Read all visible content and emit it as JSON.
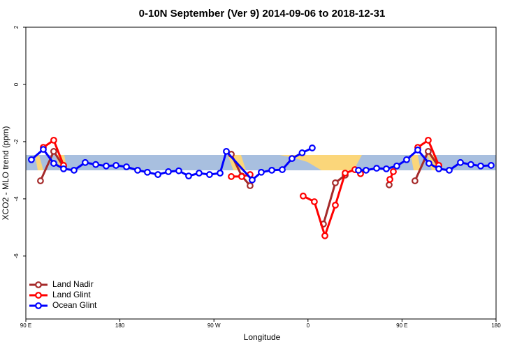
{
  "chart_data": {
    "type": "line",
    "title": "0-10N September (Ver 9)   2014-09-06 to 2018-12-31",
    "x_label": "Longitude",
    "y_label": "XCO2 - MLO trend (ppm)",
    "xlim": [
      90,
      540
    ],
    "ylim": [
      -8.2,
      2
    ],
    "xticks": [
      {
        "value": 90,
        "label": "90 E"
      },
      180,
      {
        "value": 270,
        "label": "90 W"
      },
      {
        "value": 360,
        "label": "0"
      },
      {
        "value": 450,
        "label": "90 E"
      },
      {
        "value": 540,
        "label": "180"
      }
    ],
    "yticks": [
      2,
      0,
      -2,
      -4,
      -6
    ],
    "legend": "bottom-left",
    "series": [
      {
        "name": "Land Nadir",
        "color": "#a52a2a",
        "x": [
          104,
          116.7,
          126.1,
          null,
          286.6,
          296.6,
          304.6,
          null,
          374.8,
          386.2,
          395.6,
          null,
          437.7,
          null,
          462.4,
          475.1,
          485.2
        ],
        "values": [
          -3.37,
          -2.34,
          -2.88,
          null,
          -2.44,
          -3.2,
          -3.54,
          null,
          -4.88,
          -3.44,
          -3.17,
          null,
          -3.51,
          null,
          -3.37,
          -2.34,
          -2.88
        ]
      },
      {
        "name": "Land Glint",
        "color": "#ff0000",
        "x": [
          106.7,
          116.7,
          126.1,
          null,
          286.6,
          296.6,
          304.6,
          null,
          355.4,
          366.1,
          376.2,
          386.2,
          395.6,
          404.9,
          410.3,
          null,
          438.4,
          441.7,
          null,
          465.1,
          475.1,
          485.2
        ],
        "values": [
          -2.2,
          -1.95,
          -2.83,
          null,
          -3.22,
          -3.22,
          -3.15,
          null,
          -3.9,
          -4.1,
          -5.29,
          -4.22,
          -3.1,
          -2.98,
          -3.12,
          null,
          -3.32,
          -3.05,
          null,
          -2.2,
          -1.95,
          -2.83
        ]
      },
      {
        "name": "Ocean Glint",
        "color": "#0000ff",
        "x": [
          95.3,
          106.7,
          116.7,
          126.1,
          136.1,
          146.8,
          156.9,
          166.9,
          176.3,
          186.3,
          197,
          206.3,
          216.4,
          226.4,
          236.4,
          245.8,
          255.8,
          265.8,
          275.9,
          281.9,
          306.6,
          315.3,
          325.4,
          335.4,
          344.7,
          354.4,
          364.1,
          null,
          408.3,
          415.6,
          425.7,
          435,
          445,
          454.4,
          465.1,
          475.8,
          485.2,
          495.2,
          505.9,
          515.9,
          525.3,
          535.3
        ],
        "values": [
          -2.63,
          -2.27,
          -2.76,
          -2.95,
          -3.0,
          -2.73,
          -2.8,
          -2.85,
          -2.83,
          -2.88,
          -3.0,
          -3.07,
          -3.15,
          -3.05,
          -3.02,
          -3.2,
          -3.1,
          -3.15,
          -3.1,
          -2.34,
          -3.34,
          -3.07,
          -3.0,
          -2.98,
          -2.59,
          -2.39,
          -2.22,
          null,
          -3.0,
          -3.0,
          -2.93,
          -2.95,
          -2.85,
          -2.63,
          -2.29,
          -2.76,
          -2.95,
          -3.0,
          -2.73,
          -2.8,
          -2.85,
          -2.83
        ]
      }
    ]
  }
}
